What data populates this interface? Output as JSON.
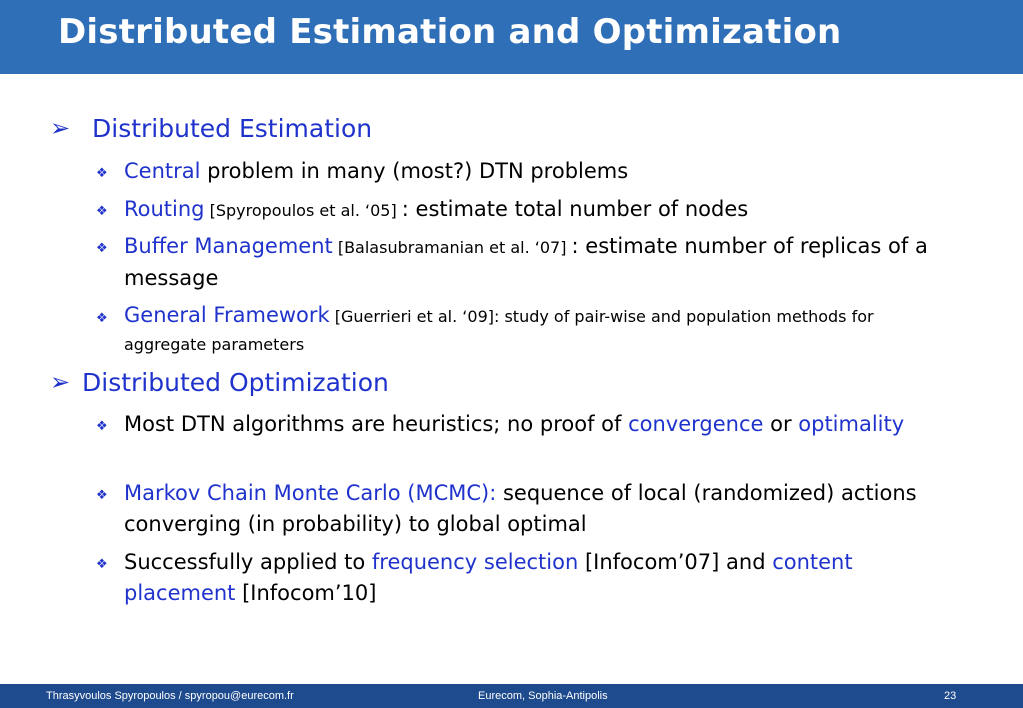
{
  "title": "Distributed Estimation and Optimization",
  "sections": [
    {
      "heading": "Distributed Estimation",
      "items": [
        {
          "highlight": "Central",
          "text": " problem in many (most?) DTN problems"
        },
        {
          "highlight": "Routing",
          "cite": " [Spyropoulos et al. ‘05] ",
          "text": ": estimate total number of nodes"
        },
        {
          "highlight": "Buffer Management",
          "cite": " [Balasubramanian et al. ‘07] ",
          "text": ": estimate number of replicas of a message"
        },
        {
          "highlight": "General Framework",
          "cite": " [Guerrieri et al. ‘09]: study of pair-wise and population methods for aggregate parameters"
        }
      ]
    },
    {
      "heading": "Distributed Optimization",
      "items": [
        {
          "text_a": "Most DTN algorithms are heuristics; no proof of ",
          "hl_a": "convergence",
          "text_b": " or ",
          "hl_b": "optimality"
        },
        {
          "highlight": "Markov Chain Monte Carlo (MCMC):",
          "text": " sequence of local (randomized) actions converging (in probability) to global optimal"
        },
        {
          "text_a": "Successfully applied to ",
          "hl_a": "frequency selection",
          "text_b": " [Infocom’07] and ",
          "hl_b": "content placement",
          "text_c": " [Infocom’10]"
        }
      ]
    }
  ],
  "footer": {
    "left": "Thrasyvoulos Spyropoulos / spyropou@eurecom.fr",
    "center": "Eurecom, Sophia-Antipolis",
    "page": "23"
  },
  "colors": {
    "title_bar": "#2f6fb7",
    "footer_bar": "#1e4a8e",
    "accent": "#1f33cc"
  }
}
